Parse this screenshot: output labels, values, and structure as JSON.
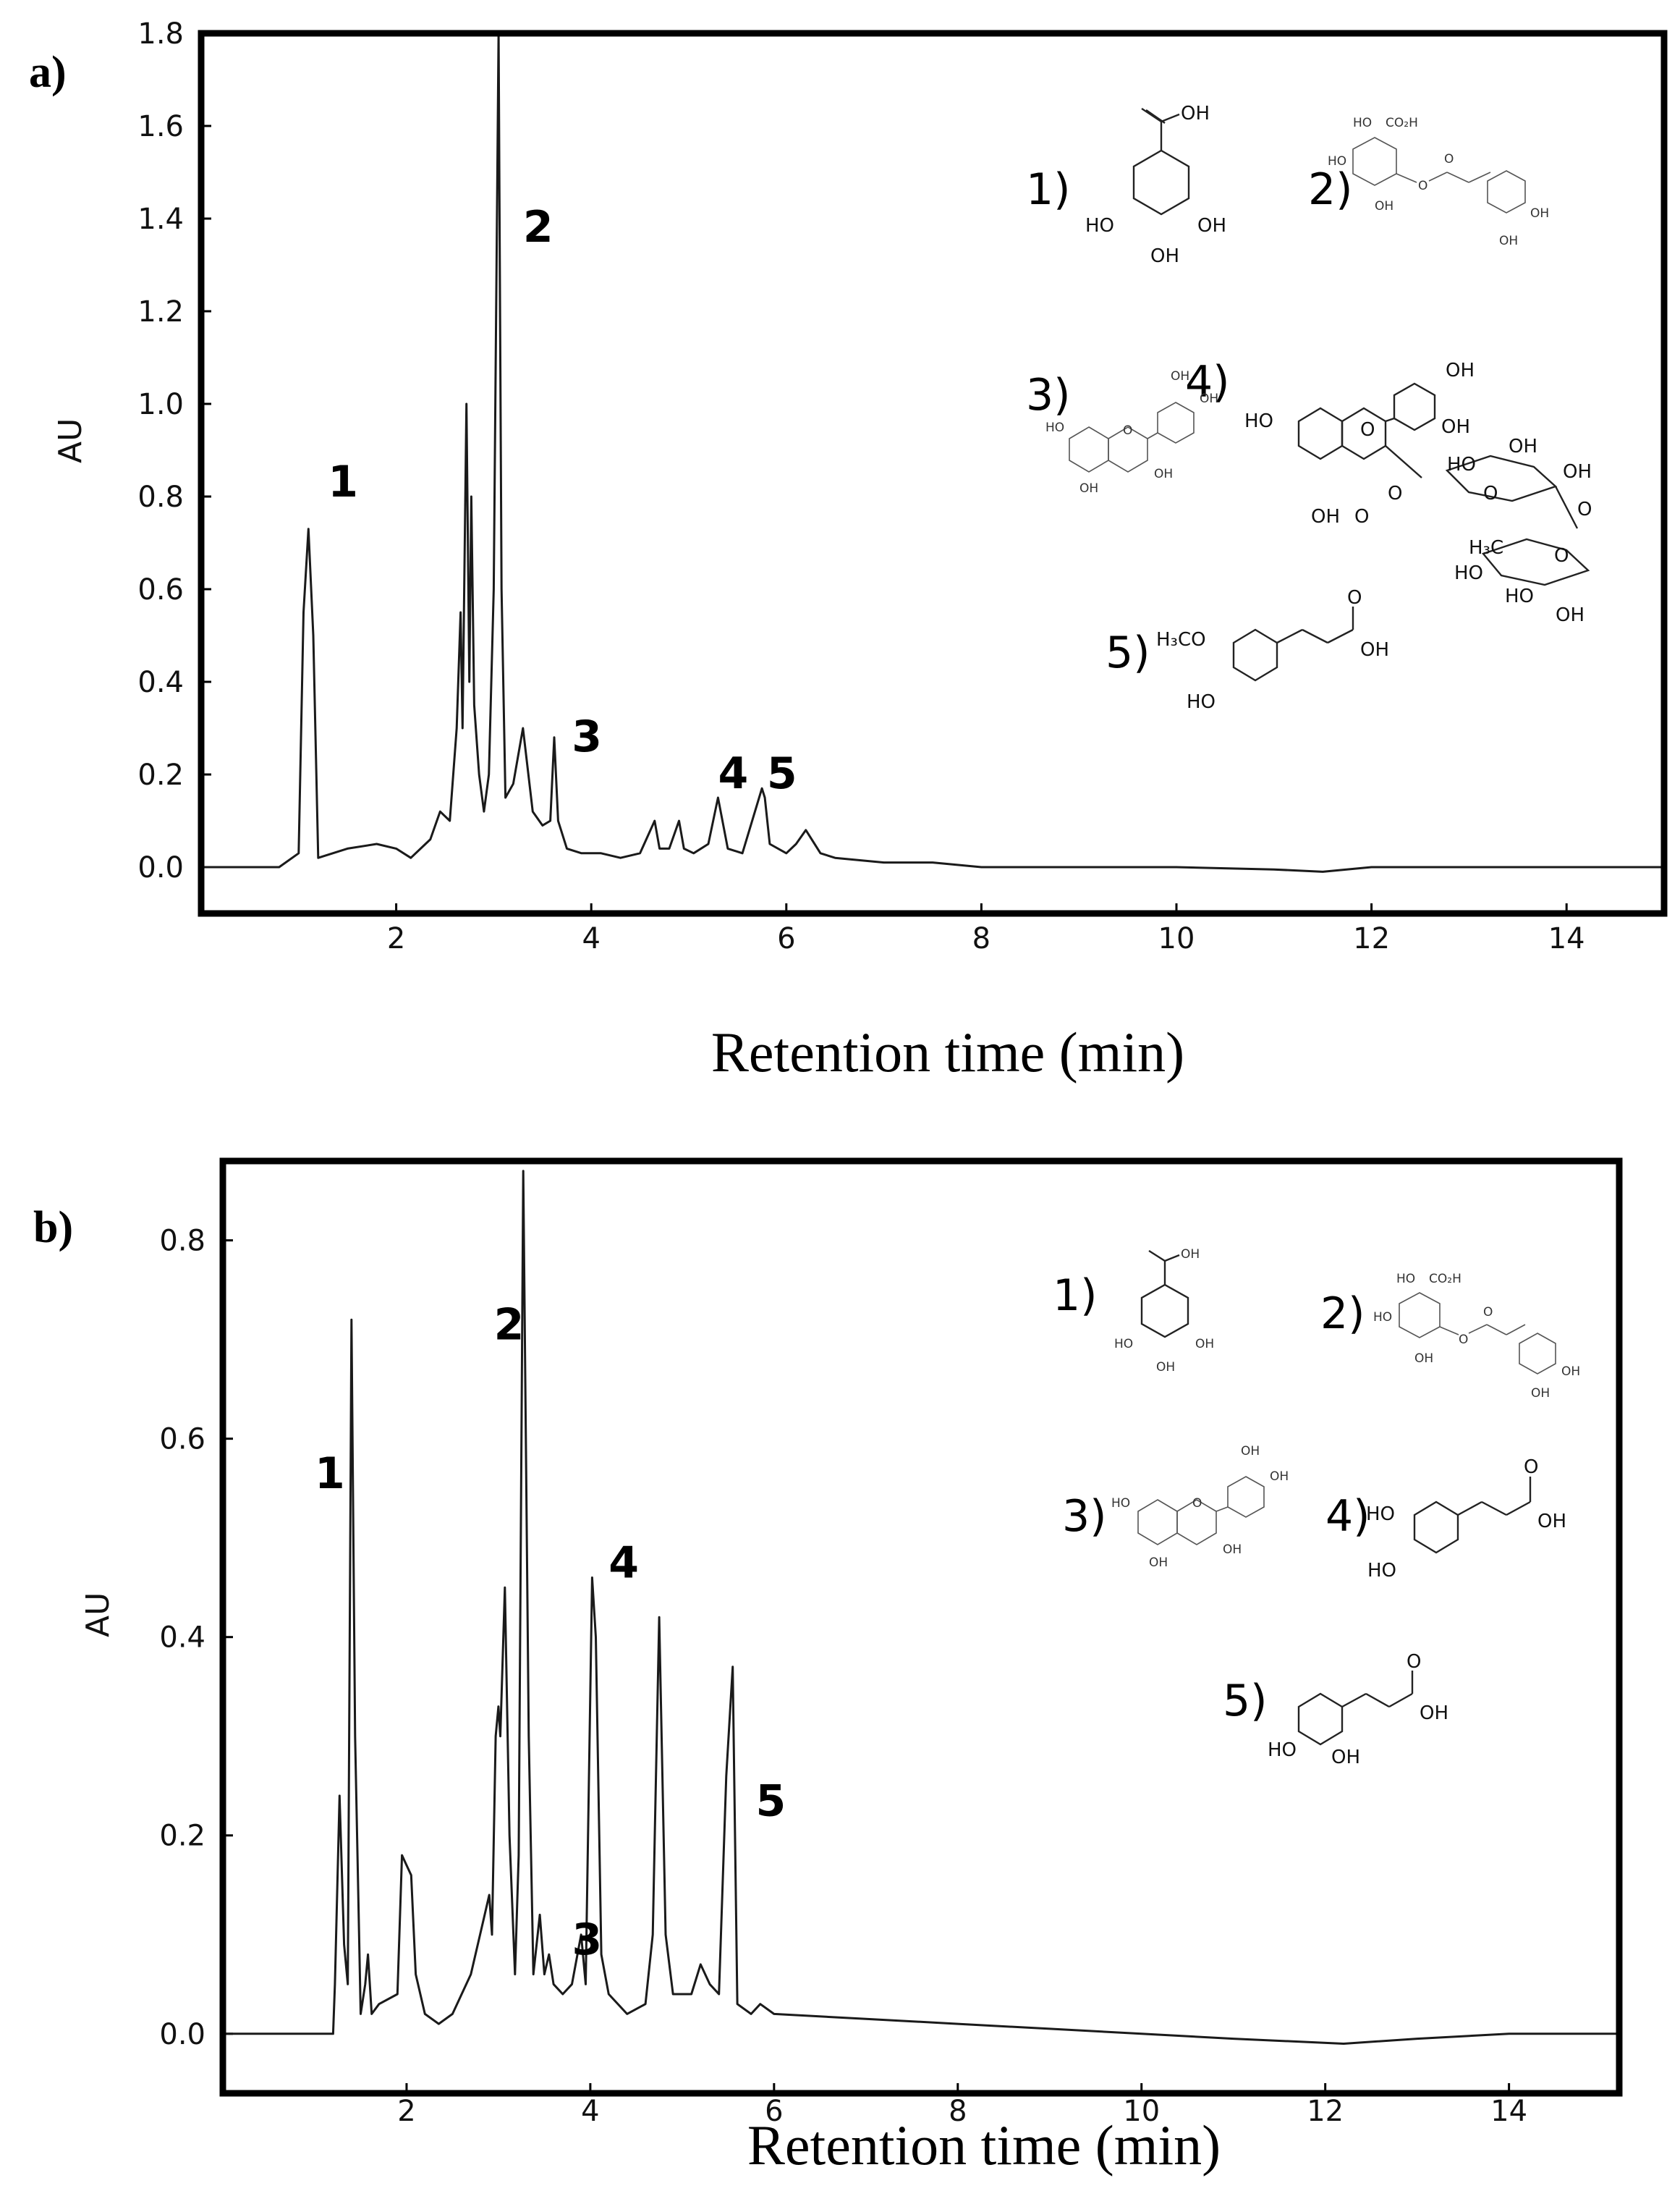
{
  "chart_data": [
    {
      "panel": "a)",
      "type": "line",
      "xlabel": "Retention time (min)",
      "ylabel": "AU",
      "xlim": [
        0,
        15
      ],
      "ylim": [
        -0.1,
        1.8
      ],
      "xticks": [
        "2",
        "4",
        "6",
        "8",
        "10",
        "12",
        "14"
      ],
      "yticks": [
        "0.0",
        "0.2",
        "0.4",
        "0.6",
        "0.8",
        "1.0",
        "1.2",
        "1.4",
        "1.6",
        "1.8"
      ],
      "peak_labels": [
        {
          "text": "1",
          "x": 1.3,
          "y": 0.8
        },
        {
          "text": "2",
          "x": 3.3,
          "y": 1.35
        },
        {
          "text": "3",
          "x": 3.8,
          "y": 0.25
        },
        {
          "text": "4",
          "x": 5.3,
          "y": 0.17
        },
        {
          "text": "5",
          "x": 5.8,
          "y": 0.17
        }
      ],
      "compound_numbers": [
        "1)",
        "2)",
        "3)",
        "4)",
        "5)"
      ],
      "structure_texts": {
        "s1": [
          "OH",
          "HO",
          "OH",
          "OH"
        ],
        "s2": [
          "HO",
          "CO₂H",
          "HO",
          "OH",
          "O",
          "O",
          "OH",
          "OH"
        ],
        "s3": [
          "OH",
          "OH",
          "HO",
          "O",
          "OH",
          "OH"
        ],
        "s4": [
          "OH",
          "OH",
          "HO",
          "O",
          "HO",
          "OH",
          "OH",
          "O",
          "O",
          "OH",
          "O",
          "O",
          "O",
          "H₃C",
          "HO",
          "HO",
          "OH"
        ],
        "s5": [
          "H₃CO",
          "O",
          "OH",
          "HO"
        ]
      },
      "series": [
        {
          "x": [
            0.0,
            0.8,
            1.0,
            1.05,
            1.1,
            1.15,
            1.2,
            1.5,
            1.8,
            2.0,
            2.15,
            2.35,
            2.45,
            2.55,
            2.62,
            2.66,
            2.68,
            2.72,
            2.75,
            2.77,
            2.8,
            2.85,
            2.9,
            2.95,
            3.0,
            3.05,
            3.08,
            3.12,
            3.2,
            3.3,
            3.4,
            3.5,
            3.58,
            3.62,
            3.66,
            3.75,
            3.9,
            4.1,
            4.3,
            4.5,
            4.65,
            4.7,
            4.8,
            4.9,
            4.95,
            5.05,
            5.2,
            5.3,
            5.4,
            5.55,
            5.75,
            5.78,
            5.83,
            6.0,
            6.1,
            6.2,
            6.35,
            6.5,
            7.0,
            7.5,
            8.0,
            9.0,
            10.0,
            11.0,
            11.5,
            12.0,
            13.0,
            14.0,
            15.0
          ],
          "y": [
            0.0,
            0.0,
            0.03,
            0.55,
            0.73,
            0.5,
            0.02,
            0.04,
            0.05,
            0.04,
            0.02,
            0.06,
            0.12,
            0.1,
            0.3,
            0.55,
            0.3,
            1.0,
            0.4,
            0.8,
            0.35,
            0.2,
            0.12,
            0.2,
            0.6,
            1.8,
            0.6,
            0.15,
            0.18,
            0.3,
            0.12,
            0.09,
            0.1,
            0.28,
            0.1,
            0.04,
            0.03,
            0.03,
            0.02,
            0.03,
            0.1,
            0.04,
            0.04,
            0.1,
            0.04,
            0.03,
            0.05,
            0.15,
            0.04,
            0.03,
            0.17,
            0.15,
            0.05,
            0.03,
            0.05,
            0.08,
            0.03,
            0.02,
            0.01,
            0.01,
            0.0,
            0.0,
            0.0,
            -0.005,
            -0.01,
            0.0,
            0.0,
            0.0,
            0.0
          ]
        }
      ]
    },
    {
      "panel": "b)",
      "type": "line",
      "xlabel": "Retention time (min)",
      "ylabel": "AU",
      "xlim": [
        0,
        15.2
      ],
      "ylim": [
        -0.06,
        0.88
      ],
      "xticks": [
        "2",
        "4",
        "6",
        "8",
        "10",
        "12",
        "14"
      ],
      "yticks": [
        "0.0",
        "0.2",
        "0.4",
        "0.6",
        "0.8"
      ],
      "peak_labels": [
        {
          "text": "1",
          "x": 1.0,
          "y": 0.55
        },
        {
          "text": "2",
          "x": 2.95,
          "y": 0.7
        },
        {
          "text": "3",
          "x": 3.8,
          "y": 0.08
        },
        {
          "text": "4",
          "x": 4.2,
          "y": 0.46
        },
        {
          "text": "5",
          "x": 5.8,
          "y": 0.22
        }
      ],
      "compound_numbers": [
        "1)",
        "2)",
        "3)",
        "4)",
        "5)"
      ],
      "structure_texts": {
        "s1": [
          "OH",
          "HO",
          "OH",
          "OH"
        ],
        "s2": [
          "HO",
          "CO₂H",
          "HO",
          "OH",
          "O",
          "O",
          "OH",
          "OH"
        ],
        "s3": [
          "OH",
          "OH",
          "HO",
          "O",
          "OH",
          "OH"
        ],
        "s4": [
          "HO",
          "O",
          "OH",
          "HO"
        ],
        "s5": [
          "O",
          "OH",
          "HO",
          "OH"
        ]
      },
      "series": [
        {
          "x": [
            0.0,
            1.2,
            1.22,
            1.27,
            1.32,
            1.36,
            1.4,
            1.44,
            1.5,
            1.55,
            1.58,
            1.62,
            1.7,
            1.9,
            1.95,
            2.0,
            2.05,
            2.1,
            2.2,
            2.35,
            2.5,
            2.7,
            2.85,
            2.9,
            2.93,
            2.97,
            3.0,
            3.02,
            3.07,
            3.12,
            3.18,
            3.22,
            3.27,
            3.33,
            3.38,
            3.45,
            3.5,
            3.55,
            3.6,
            3.7,
            3.8,
            3.9,
            3.95,
            4.02,
            4.06,
            4.12,
            4.2,
            4.4,
            4.6,
            4.68,
            4.75,
            4.82,
            4.9,
            5.1,
            5.2,
            5.3,
            5.4,
            5.48,
            5.55,
            5.6,
            5.75,
            5.85,
            6.0,
            7.0,
            8.0,
            9.0,
            10.0,
            11.0,
            12.2,
            13.0,
            14.0,
            15.2
          ],
          "y": [
            0.0,
            0.0,
            0.05,
            0.24,
            0.09,
            0.05,
            0.72,
            0.3,
            0.02,
            0.05,
            0.08,
            0.02,
            0.03,
            0.04,
            0.18,
            0.17,
            0.16,
            0.06,
            0.02,
            0.01,
            0.02,
            0.06,
            0.12,
            0.14,
            0.1,
            0.3,
            0.33,
            0.3,
            0.45,
            0.2,
            0.06,
            0.18,
            0.87,
            0.3,
            0.06,
            0.12,
            0.06,
            0.08,
            0.05,
            0.04,
            0.05,
            0.1,
            0.05,
            0.46,
            0.4,
            0.08,
            0.04,
            0.02,
            0.03,
            0.1,
            0.42,
            0.1,
            0.04,
            0.04,
            0.07,
            0.05,
            0.04,
            0.26,
            0.37,
            0.03,
            0.02,
            0.03,
            0.02,
            0.015,
            0.01,
            0.005,
            0.0,
            -0.005,
            -0.01,
            -0.005,
            0.0,
            0.0
          ]
        }
      ]
    }
  ]
}
